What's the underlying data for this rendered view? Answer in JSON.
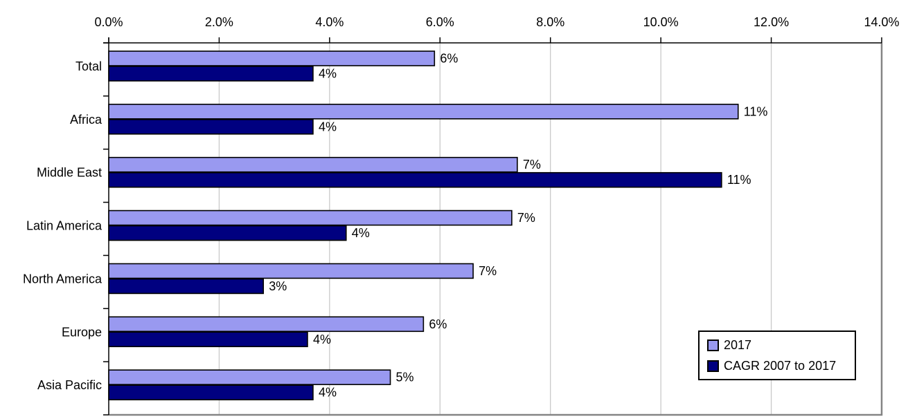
{
  "chart_data": {
    "type": "bar",
    "orientation": "horizontal",
    "title": "",
    "xlabel": "",
    "ylabel": "",
    "categories": [
      "Total",
      "Africa",
      "Middle East",
      "Latin America",
      "North America",
      "Europe",
      "Asia Pacific"
    ],
    "series": [
      {
        "name": "2017",
        "color": "#9999F0",
        "values": [
          5.9,
          11.4,
          7.4,
          7.3,
          6.6,
          5.7,
          5.1
        ],
        "labels": [
          "6%",
          "11%",
          "7%",
          "7%",
          "7%",
          "6%",
          "5%"
        ]
      },
      {
        "name": "CAGR 2007 to 2017",
        "color": "#000080",
        "values": [
          3.7,
          3.7,
          11.1,
          4.3,
          2.8,
          3.6,
          3.7
        ],
        "labels": [
          "4%",
          "4%",
          "11%",
          "4%",
          "3%",
          "4%",
          "4%"
        ]
      }
    ],
    "xlim": [
      0,
      14
    ],
    "x_tick_step": 2,
    "x_tick_labels": [
      "0.0%",
      "2.0%",
      "4.0%",
      "6.0%",
      "8.0%",
      "10.0%",
      "12.0%",
      "14.0%"
    ],
    "grid": "vertical",
    "axis_position": "top",
    "legend_position": "inside-bottom-right"
  },
  "colors": {
    "background": "#FFFFFF",
    "text": "#000000",
    "axis_line": "#000000",
    "bar_border": "#000000",
    "gridline": "#C9C9C9",
    "shadow_border": "#848484"
  }
}
